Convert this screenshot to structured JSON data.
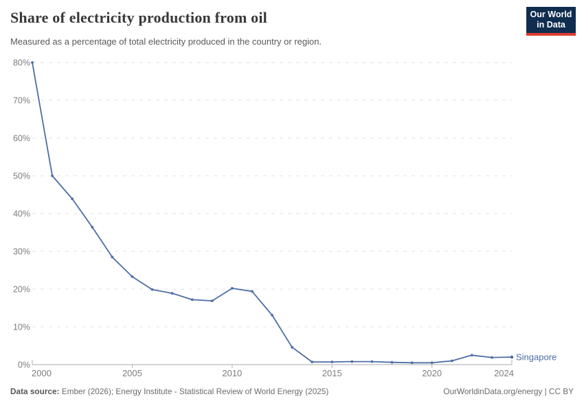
{
  "header": {
    "title": "Share of electricity production from oil",
    "subtitle": "Measured as a percentage of total electricity produced in the country or region.",
    "logo": {
      "line1": "Our World",
      "line2": "in Data"
    }
  },
  "chart_data": {
    "type": "line",
    "title": "Share of electricity production from oil",
    "xlabel": "",
    "ylabel": "",
    "xlim": [
      2000,
      2024
    ],
    "ylim": [
      0,
      80
    ],
    "x_ticks": [
      2000,
      2005,
      2010,
      2015,
      2020,
      2024
    ],
    "y_ticks": [
      0,
      10,
      20,
      30,
      40,
      50,
      60,
      70,
      80
    ],
    "y_tick_suffix": "%",
    "grid": "horizontal-dashed",
    "legend_position": "end-of-line",
    "x": [
      2000,
      2001,
      2002,
      2003,
      2004,
      2005,
      2006,
      2007,
      2008,
      2009,
      2010,
      2011,
      2012,
      2013,
      2014,
      2015,
      2016,
      2017,
      2018,
      2019,
      2020,
      2021,
      2022,
      2023,
      2024
    ],
    "series": [
      {
        "name": "Singapore",
        "color": "#4c6da6",
        "values": [
          80,
          50,
          43.9,
          36.4,
          28.5,
          23.3,
          19.9,
          18.9,
          17.2,
          16.9,
          20.2,
          19.4,
          13.1,
          4.6,
          0.7,
          0.7,
          0.8,
          0.8,
          0.6,
          0.5,
          0.5,
          1.0,
          2.5,
          1.9,
          2.0
        ]
      }
    ]
  },
  "footer": {
    "source_label": "Data source:",
    "source_text": " Ember (2026); Energy Institute - Statistical Review of World Energy (2025)",
    "link_text": "OurWorldinData.org/energy | CC BY"
  },
  "colors": {
    "line": "#4c6da6",
    "gridline": "#e2e2e2",
    "axis_line": "#a8a8a8",
    "tick": "#b0b0b0",
    "axis_text": "#7d7d7d",
    "logo_bg": "#102d50",
    "logo_accent": "#dc3c32"
  }
}
